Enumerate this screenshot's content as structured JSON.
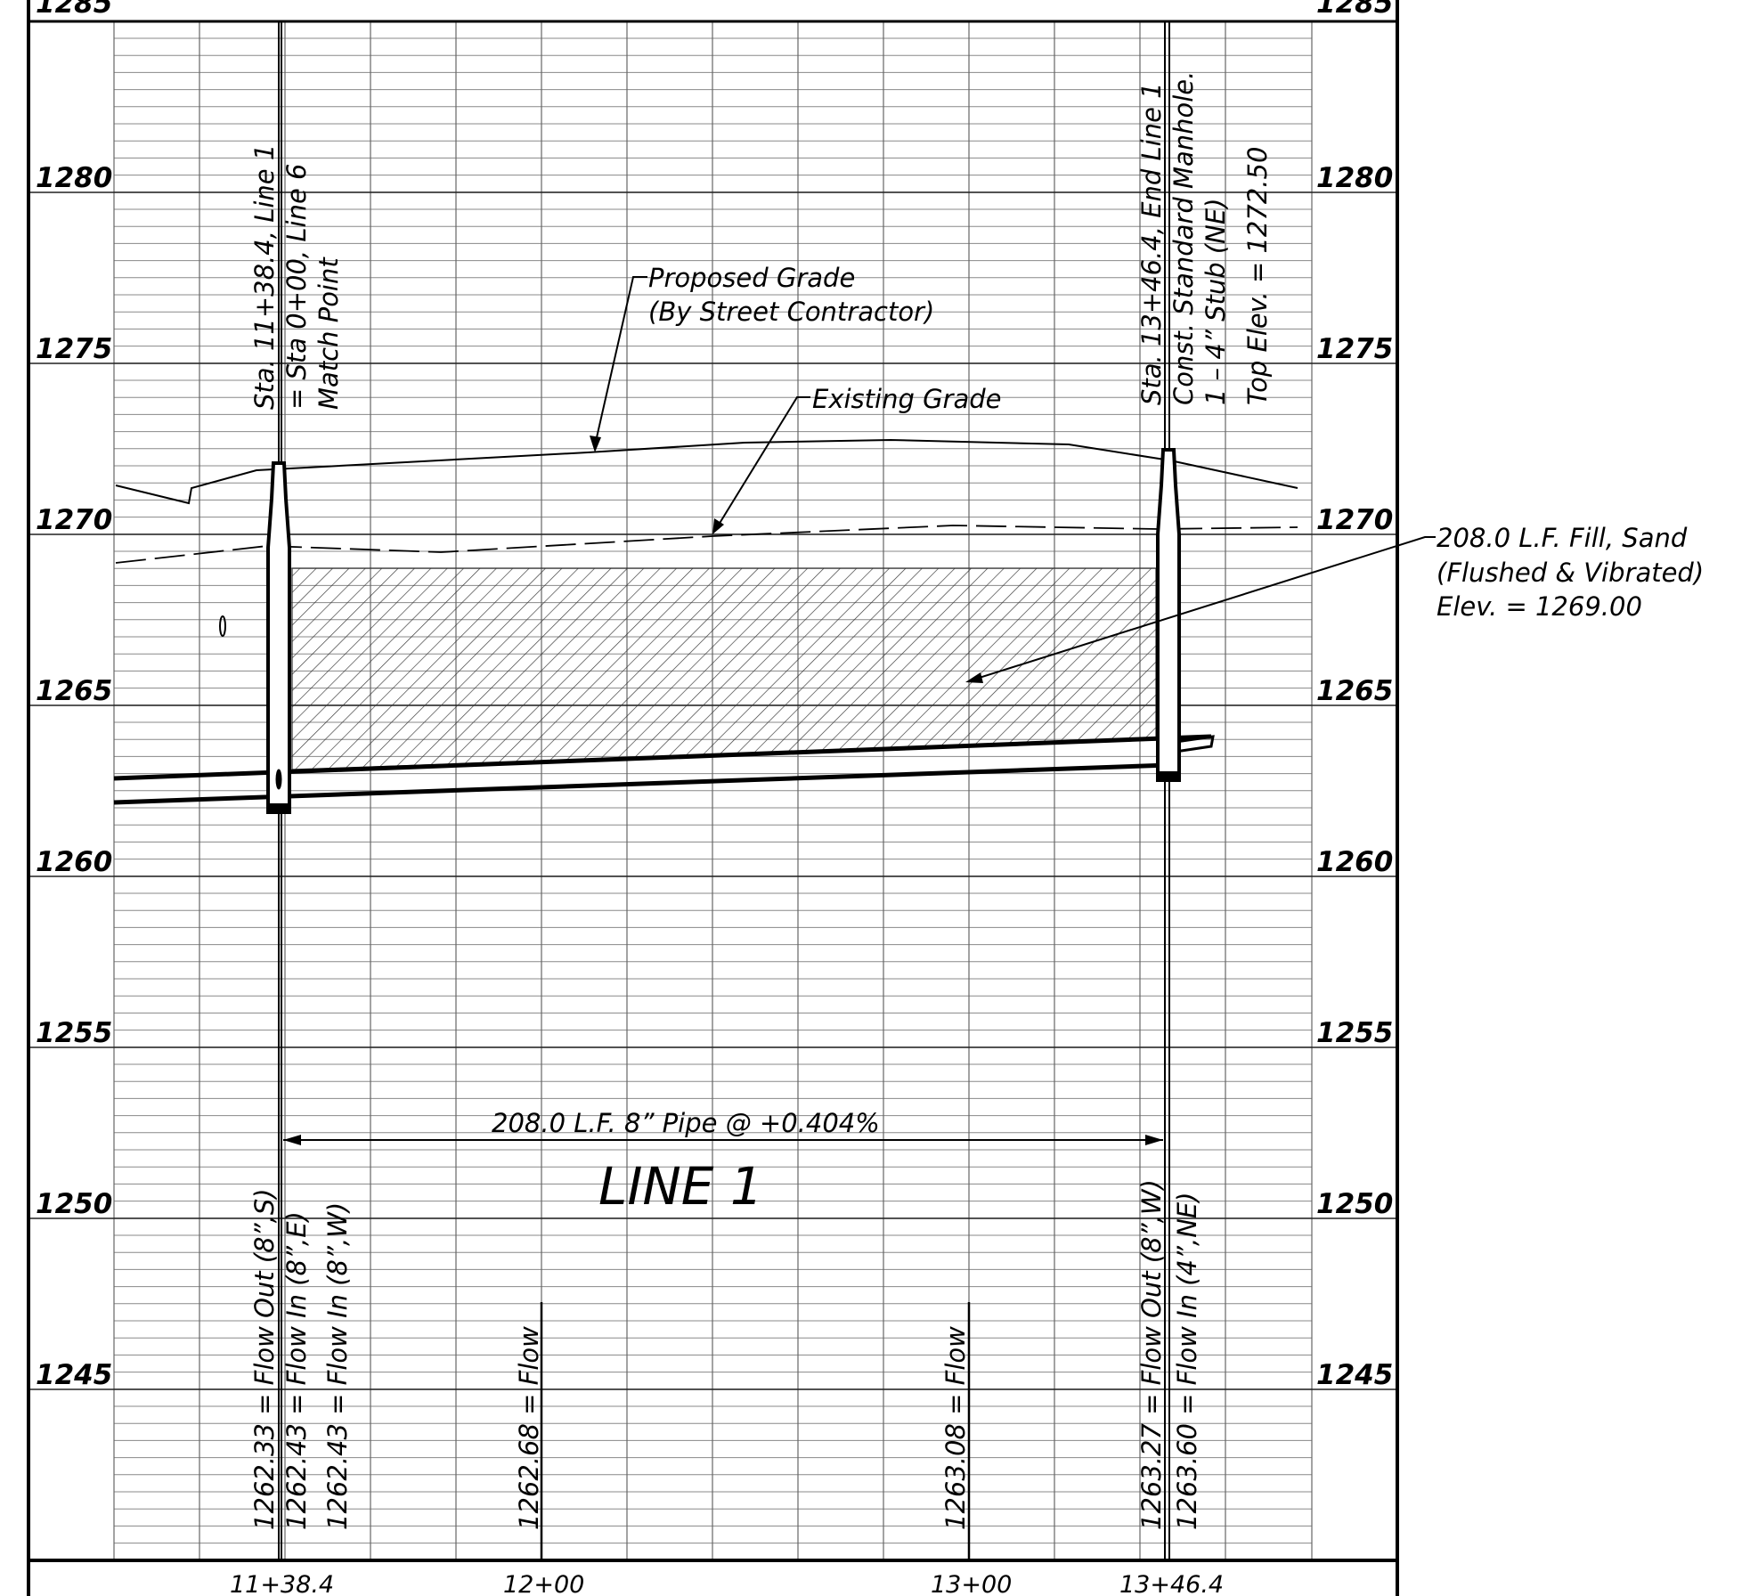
{
  "profile": {
    "title": "LINE 1",
    "pipe_callout": "208.0 L.F. 8” Pipe @ +0.404%",
    "elevation_axis": {
      "major_ticks": [
        "1280",
        "1275",
        "1270",
        "1265",
        "1260",
        "1255",
        "1250",
        "1245"
      ],
      "top_partial_left": "1285",
      "top_partial_right": "1285"
    },
    "station_labels": [
      "11+38.4",
      "12+00",
      "13+00",
      "13+46.4"
    ],
    "start_structure_note": [
      "Sta. 11+38.4, Line 1",
      "= Sta 0+00, Line 6",
      "Match Point"
    ],
    "end_structure_note": [
      "Sta. 13+46.4, End Line 1",
      "Const. Standard Manhole.",
      "1 – 4” Stub (NE)",
      "Top Elev. = 1272.50"
    ],
    "grade_labels": {
      "proposed": [
        "Proposed Grade",
        "(By Street Contractor)"
      ],
      "existing": "Existing Grade"
    },
    "fill_note": [
      "208.0 L.F. Fill, Sand",
      "(Flushed & Vibrated)",
      "Elev. = 1269.00"
    ],
    "flowline_labels": [
      "1262.33 = Flow Out (8”,S)",
      "1262.43 = Flow In (8”,E)",
      "1262.43 = Flow In (8”,W)",
      "1262.68 = Flow",
      "1263.08 = Flow",
      "1263.27 = Flow Out (8”,W)",
      "1263.60 = Flow In (4”,NE)"
    ]
  },
  "chart_data": {
    "type": "line",
    "xlabel": "",
    "ylabel": "",
    "x_ticks": [
      "11+38.4",
      "12+00",
      "13+00",
      "13+46.4"
    ],
    "ylim": [
      1241,
      1285
    ],
    "grid": true,
    "series": [
      {
        "values": [
          {
            "station": "11+38.4",
            "elev": 1262.33
          },
          {
            "station": "12+00",
            "elev": 1262.68
          },
          {
            "station": "13+00",
            "elev": 1263.08
          },
          {
            "station": "13+46.4",
            "elev": 1263.27
          }
        ]
      }
    ],
    "fill_elevation": 1269.0,
    "manhole_top_elevation": 1272.5
  }
}
